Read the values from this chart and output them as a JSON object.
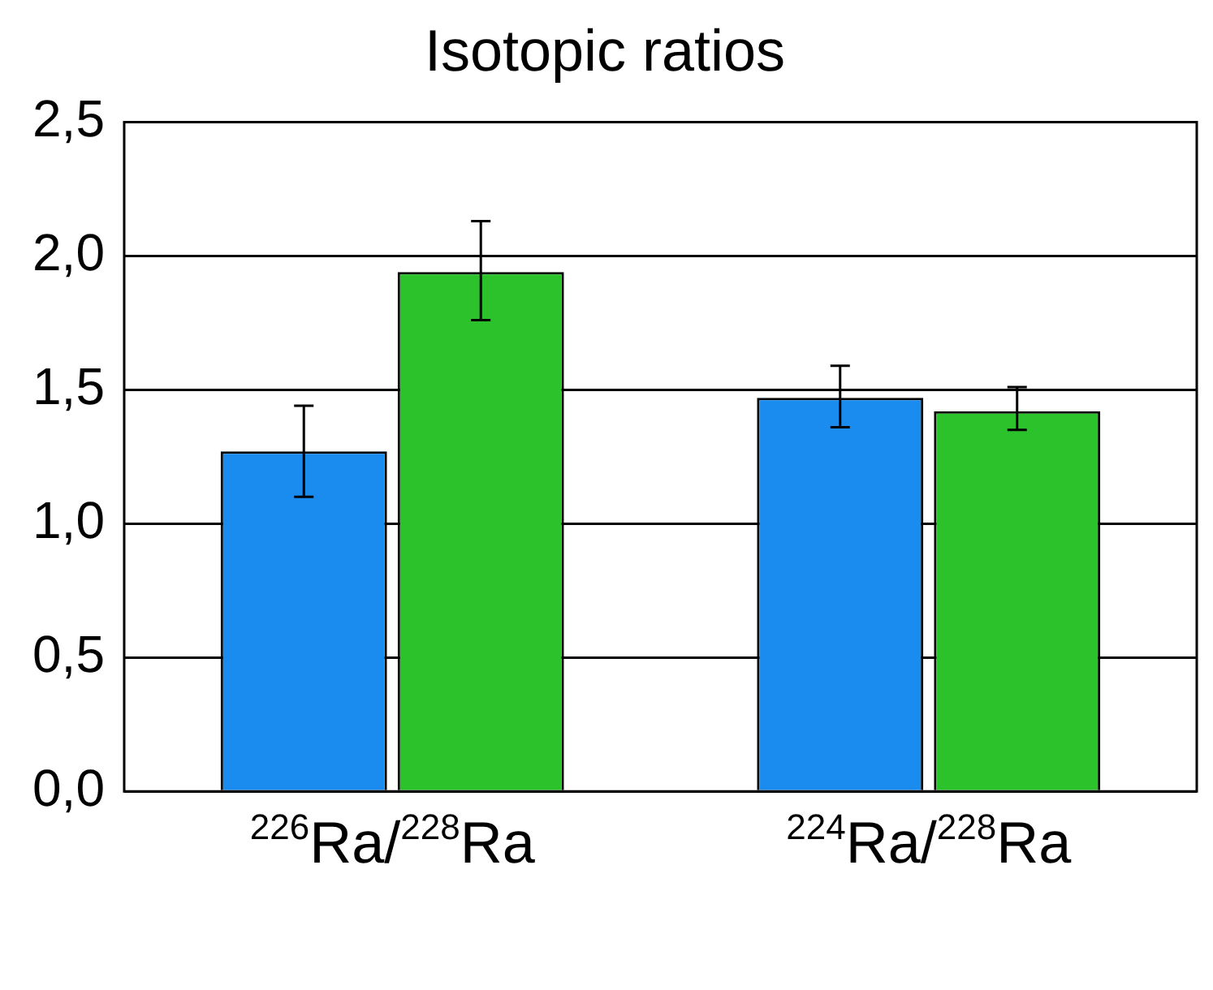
{
  "chart_data": {
    "type": "bar",
    "title": "Isotopic ratios",
    "categories": [
      "$^{226}$Ra/$^{228}$Ra",
      "$^{224}$Ra/$^{228}$Ra"
    ],
    "series": [
      {
        "color": "#1a8cf0",
        "values": [
          1.27,
          1.47
        ],
        "errors": [
          [
            1.1,
            1.44
          ],
          [
            1.36,
            1.59
          ]
        ]
      },
      {
        "color": "#2cc22c",
        "values": [
          1.94,
          1.42
        ],
        "errors": [
          [
            1.76,
            2.13
          ],
          [
            1.35,
            1.51
          ]
        ]
      }
    ],
    "ylim": [
      0,
      2.5
    ],
    "yticks": [
      {
        "value": 0,
        "label": "0,0"
      },
      {
        "value": 0.5,
        "label": "0,5"
      },
      {
        "value": 1,
        "label": "1,0"
      },
      {
        "value": 1.5,
        "label": "1,5"
      },
      {
        "value": 2,
        "label": "2,0"
      },
      {
        "value": 2.5,
        "label": "2,5"
      }
    ],
    "grid": "y",
    "legend": false
  }
}
